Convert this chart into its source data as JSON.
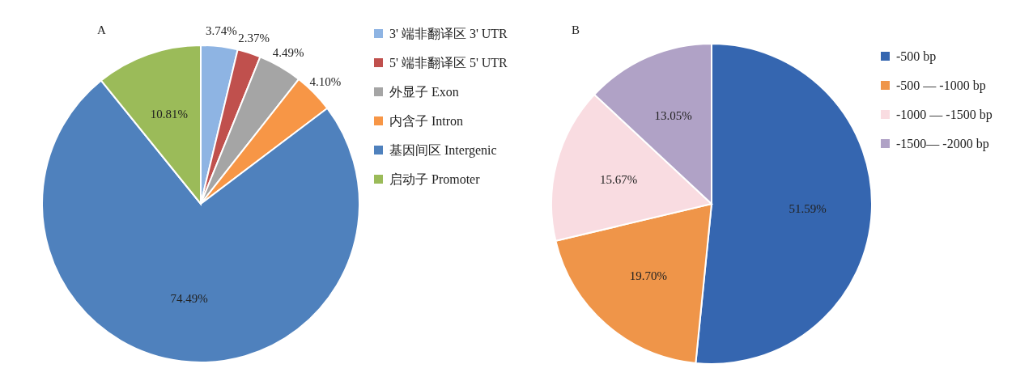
{
  "chart_data": [
    {
      "type": "pie",
      "title": "A",
      "categories": [
        "3' 端非翻译区 3' UTR",
        "5' 端非翻译区 5' UTR",
        "外显子 Exon",
        "内含子 Intron",
        "基因间区 Intergenic",
        "启动子 Promoter"
      ],
      "values": [
        3.74,
        2.37,
        4.49,
        4.1,
        74.49,
        10.81
      ],
      "colors": [
        "#8eb4e3",
        "#c0504d",
        "#a5a5a5",
        "#f79646",
        "#4f81bd",
        "#9bbb59"
      ],
      "value_labels": [
        "3.74%",
        "2.37%",
        "4.49%",
        "4.10%",
        "74.49%",
        "10.81%"
      ],
      "legend": "right"
    },
    {
      "type": "pie",
      "title": "B",
      "categories": [
        "-500 bp",
        "-500 — -1000 bp",
        "-1000 — -1500 bp",
        "-1500— -2000 bp"
      ],
      "values": [
        51.59,
        19.7,
        15.67,
        13.05
      ],
      "colors": [
        "#3566b0",
        "#ef9549",
        "#f9dce1",
        "#b0a2c6"
      ],
      "value_labels": [
        "51.59%",
        "19.70%",
        "15.67%",
        "13.05%"
      ],
      "legend": "right"
    }
  ]
}
